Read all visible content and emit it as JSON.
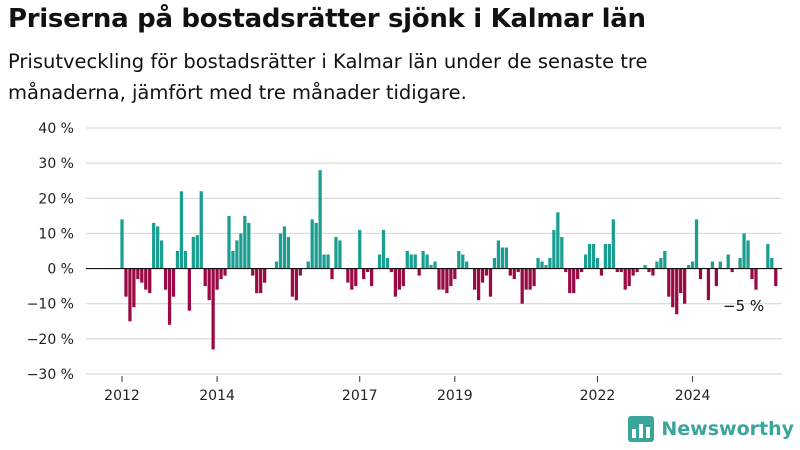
{
  "title": "Priserna på bostadsrätter sjönk i Kalmar län",
  "subtitle": "Prisutveckling för bostadsrätter i Kalmar län under de senaste tre månaderna, jämfört med tre månader tidigare.",
  "brand": {
    "name": "Newsworthy",
    "icon": "newsworthy-logo-icon"
  },
  "colors": {
    "positive": "#1a9e91",
    "negative": "#990a45",
    "grid": "#d4d4d4",
    "brand": "#3aa59b"
  },
  "chart_data": {
    "type": "bar",
    "unit": "%",
    "annotation": "−5 %",
    "ylim": [
      -30,
      40
    ],
    "y_ticks": [
      -30,
      -20,
      -10,
      0,
      10,
      20,
      30,
      40
    ],
    "y_tick_labels": [
      "−30 %",
      "−20 %",
      "−10 %",
      "0 %",
      "10 %",
      "20 %",
      "30 %",
      "40 %"
    ],
    "x_range": [
      "2012-01",
      "2025-04"
    ],
    "x_ticks": [
      {
        "date": "2012-01",
        "label": "2012"
      },
      {
        "date": "2014-01",
        "label": "2014"
      },
      {
        "date": "2017-01",
        "label": "2017"
      },
      {
        "date": "2019-01",
        "label": "2019"
      },
      {
        "date": "2022-01",
        "label": "2022"
      },
      {
        "date": "2024-01",
        "label": "2024"
      }
    ],
    "grid": true,
    "legend": "none",
    "start": "2012-01",
    "frequency": "monthly",
    "values": [
      14,
      -8,
      -15,
      -11,
      -3,
      -4,
      -6,
      -7,
      13,
      12,
      8,
      -6,
      -16,
      -8,
      5,
      22,
      5,
      -12,
      9,
      9.5,
      22,
      -5,
      -9,
      -23,
      -6,
      -3,
      -2,
      15,
      5,
      8,
      10,
      15,
      13,
      -2,
      -7,
      -7,
      -4,
      0,
      0,
      2,
      10,
      12,
      9,
      -8,
      -9,
      -2,
      0,
      2,
      14,
      13,
      28,
      4,
      4,
      -3,
      9,
      8,
      0,
      -4,
      -6,
      -5,
      11,
      -3,
      -1,
      -5,
      0,
      4,
      11,
      3,
      -1,
      -8,
      -6,
      -5,
      5,
      4,
      4,
      -2,
      5,
      4,
      1,
      2,
      -6,
      -6,
      -7,
      -5,
      -3,
      5,
      4,
      2,
      0,
      -6,
      -9,
      -4,
      -2,
      -8,
      3,
      8,
      6,
      6,
      -2,
      -3,
      -1,
      -10,
      -6,
      -6,
      -5,
      3,
      2,
      1,
      3,
      11,
      16,
      9,
      -1,
      -7,
      -7,
      -3,
      -1,
      4,
      7,
      7,
      3,
      -2,
      7,
      7,
      14,
      -1,
      -1,
      -6,
      -5,
      -2,
      -1,
      0,
      1,
      -1,
      -2,
      2,
      3,
      5,
      -8,
      -11,
      -13,
      -7,
      -10,
      1,
      2,
      14,
      -3,
      0,
      -9,
      2,
      -5,
      2,
      0,
      4,
      -1,
      0,
      3,
      10,
      8,
      -3,
      -6,
      0,
      0,
      7,
      3,
      -5
    ]
  }
}
